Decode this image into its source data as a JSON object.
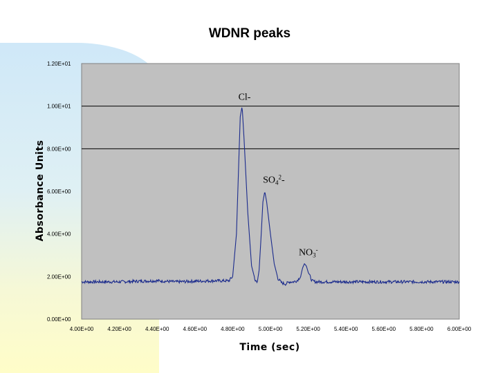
{
  "chart_data": {
    "type": "line",
    "title": "WDNR peaks",
    "xlabel": "Time (sec)",
    "ylabel": "Absorbance Units",
    "xlim": [
      4.0,
      6.0
    ],
    "ylim": [
      0.0,
      12.0
    ],
    "x_ticks": [
      "4.00E+00",
      "4.20E+00",
      "4.40E+00",
      "4.60E+00",
      "4.80E+00",
      "5.00E+00",
      "5.20E+00",
      "5.40E+00",
      "5.60E+00",
      "5.80E+00",
      "6.00E+00"
    ],
    "y_ticks": [
      "0.00E+00",
      "2.00E+00",
      "4.00E+00",
      "6.00E+00",
      "8.00E+00",
      "1.00E+01",
      "1.20E+01"
    ],
    "gridlines_y": [
      8.0,
      10.0
    ],
    "series": [
      {
        "name": "Absorbance",
        "color": "#1a2a8c",
        "x": [
          4.0,
          4.1,
          4.2,
          4.3,
          4.4,
          4.5,
          4.6,
          4.7,
          4.78,
          4.8,
          4.82,
          4.84,
          4.85,
          4.86,
          4.88,
          4.9,
          4.92,
          4.93,
          4.94,
          4.95,
          4.96,
          4.97,
          4.98,
          5.0,
          5.02,
          5.04,
          5.06,
          5.08,
          5.1,
          5.12,
          5.14,
          5.16,
          5.17,
          5.18,
          5.19,
          5.2,
          5.22,
          5.24,
          5.3,
          5.4,
          5.5,
          5.6,
          5.7,
          5.8,
          5.9,
          6.0
        ],
        "y": [
          1.75,
          1.75,
          1.75,
          1.78,
          1.8,
          1.75,
          1.78,
          1.8,
          1.8,
          2.0,
          4.0,
          9.5,
          10.0,
          8.5,
          5.0,
          2.5,
          1.8,
          1.7,
          2.3,
          3.8,
          5.5,
          6.0,
          5.5,
          4.0,
          2.6,
          1.9,
          1.7,
          1.65,
          1.75,
          1.75,
          1.8,
          2.0,
          2.4,
          2.6,
          2.5,
          2.2,
          1.8,
          1.75,
          1.75,
          1.75,
          1.75,
          1.75,
          1.75,
          1.75,
          1.75,
          1.75
        ]
      }
    ],
    "annotations": [
      {
        "text": "Cl-",
        "x": 4.83,
        "y": 10.3
      },
      {
        "text": "SO",
        "sub": "4",
        "sup": "2",
        "tail": "-",
        "x": 4.96,
        "y": 6.4
      },
      {
        "text": "NO",
        "sub": "3",
        "sup": "-",
        "tail": "",
        "x": 5.15,
        "y": 3.0
      }
    ]
  }
}
